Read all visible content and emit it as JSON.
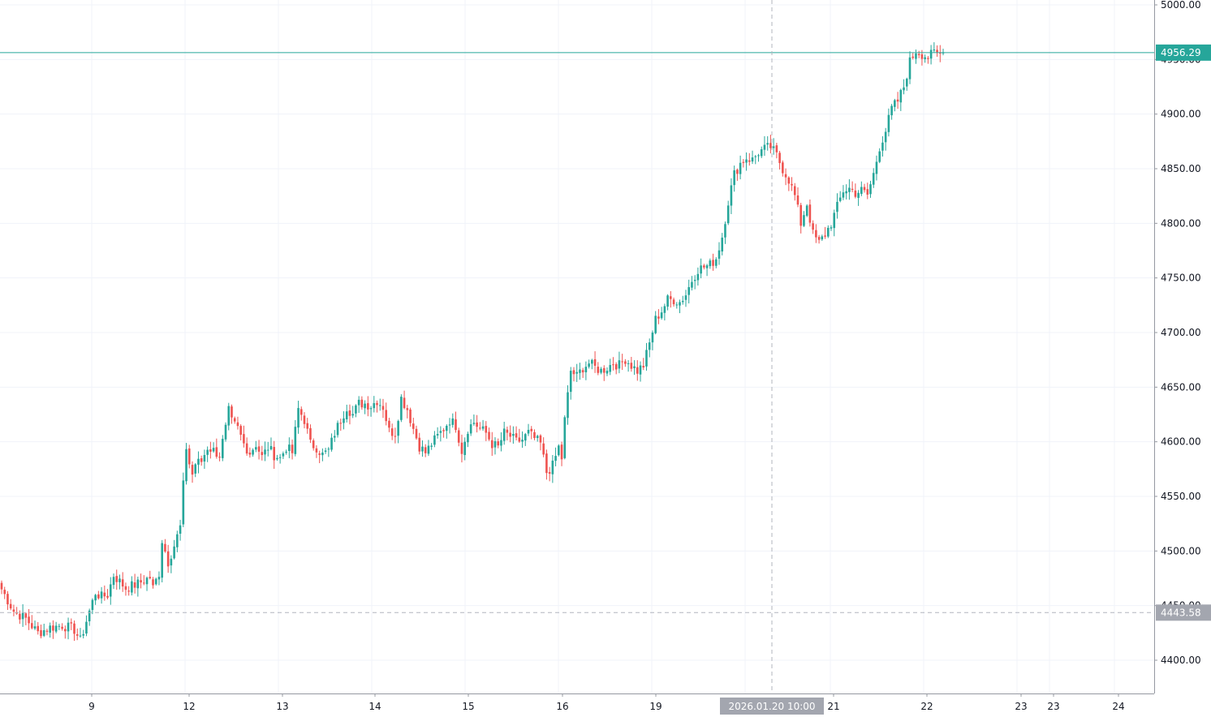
{
  "colors": {
    "up": "#26a69a",
    "down": "#ef5350",
    "grid": "#f0f3fa",
    "axis_line": "#9598a1",
    "crosshair": "#b2b5be",
    "last_price": "#26a69a",
    "crosshair_badge": "#a3a6af",
    "background": "#ffffff",
    "text": "#131722"
  },
  "chart_data": {
    "type": "candlestick",
    "y_range": [
      4375,
      5005
    ],
    "y_ticks": [
      4400,
      4450,
      4500,
      4550,
      4600,
      4650,
      4700,
      4750,
      4800,
      4850,
      4900,
      4950,
      5000
    ],
    "y_tick_labels": [
      "4400.00",
      "4450.00",
      "4500.00",
      "4550.00",
      "4600.00",
      "4650.00",
      "4700.00",
      "4750.00",
      "4800.00",
      "4850.00",
      "4900.00",
      "4950.00",
      "5000.00"
    ],
    "x_labels": [
      "9",
      "12",
      "13",
      "14",
      "15",
      "16",
      "19",
      "21",
      "22",
      "23",
      "23",
      "24"
    ],
    "last_price": 4956.29,
    "last_price_label": "4956.29",
    "crosshair_price": 4443.58,
    "crosshair_price_label": "4443.58",
    "crosshair_time_label": "2026.01.20 10:00",
    "grid": true,
    "close_path": [
      [
        0,
        4465
      ],
      [
        4,
        4445
      ],
      [
        8,
        4438
      ],
      [
        12,
        4425
      ],
      [
        16,
        4430
      ],
      [
        20,
        4432
      ],
      [
        24,
        4428
      ],
      [
        26,
        4418
      ],
      [
        29,
        4445
      ],
      [
        31,
        4462
      ],
      [
        33,
        4458
      ],
      [
        35,
        4460
      ],
      [
        37,
        4478
      ],
      [
        39,
        4472
      ],
      [
        41,
        4466
      ],
      [
        43,
        4468
      ],
      [
        45,
        4470
      ],
      [
        47,
        4473
      ],
      [
        49,
        4476
      ],
      [
        50,
        4466
      ],
      [
        52,
        4480
      ],
      [
        53,
        4510
      ],
      [
        55,
        4490
      ],
      [
        57,
        4505
      ],
      [
        59,
        4522
      ],
      [
        60,
        4560
      ],
      [
        61,
        4595
      ],
      [
        62,
        4580
      ],
      [
        63,
        4570
      ],
      [
        64,
        4580
      ],
      [
        66,
        4582
      ],
      [
        68,
        4595
      ],
      [
        70,
        4592
      ],
      [
        72,
        4588
      ],
      [
        73,
        4600
      ],
      [
        74,
        4612
      ],
      [
        75,
        4628
      ],
      [
        76,
        4618
      ],
      [
        78,
        4612
      ],
      [
        80,
        4598
      ],
      [
        82,
        4590
      ],
      [
        84,
        4598
      ],
      [
        86,
        4586
      ],
      [
        88,
        4595
      ],
      [
        90,
        4588
      ],
      [
        92,
        4585
      ],
      [
        94,
        4595
      ],
      [
        96,
        4590
      ],
      [
        98,
        4630
      ],
      [
        100,
        4620
      ],
      [
        102,
        4598
      ],
      [
        104,
        4595
      ],
      [
        106,
        4588
      ],
      [
        108,
        4592
      ],
      [
        110,
        4608
      ],
      [
        112,
        4620
      ],
      [
        114,
        4632
      ],
      [
        116,
        4625
      ],
      [
        118,
        4635
      ],
      [
        120,
        4635
      ],
      [
        122,
        4633
      ],
      [
        124,
        4638
      ],
      [
        126,
        4632
      ],
      [
        128,
        4610
      ],
      [
        130,
        4608
      ],
      [
        132,
        4640
      ],
      [
        134,
        4630
      ],
      [
        136,
        4612
      ],
      [
        138,
        4596
      ],
      [
        140,
        4590
      ],
      [
        142,
        4598
      ],
      [
        144,
        4605
      ],
      [
        146,
        4612
      ],
      [
        148,
        4620
      ],
      [
        150,
        4615
      ],
      [
        152,
        4592
      ],
      [
        154,
        4612
      ],
      [
        156,
        4618
      ],
      [
        158,
        4612
      ],
      [
        160,
        4608
      ],
      [
        162,
        4598
      ],
      [
        164,
        4595
      ],
      [
        166,
        4608
      ],
      [
        168,
        4605
      ],
      [
        170,
        4600
      ],
      [
        172,
        4602
      ],
      [
        174,
        4608
      ],
      [
        176,
        4603
      ],
      [
        178,
        4598
      ],
      [
        180,
        4572
      ],
      [
        182,
        4578
      ],
      [
        184,
        4595
      ],
      [
        185,
        4585
      ],
      [
        186,
        4620
      ],
      [
        188,
        4665
      ],
      [
        190,
        4660
      ],
      [
        192,
        4668
      ],
      [
        194,
        4672
      ],
      [
        196,
        4668
      ],
      [
        198,
        4665
      ],
      [
        200,
        4668
      ],
      [
        202,
        4672
      ],
      [
        204,
        4670
      ],
      [
        206,
        4676
      ],
      [
        208,
        4670
      ],
      [
        210,
        4665
      ],
      [
        212,
        4670
      ],
      [
        214,
        4690
      ],
      [
        216,
        4712
      ],
      [
        218,
        4720
      ],
      [
        220,
        4730
      ],
      [
        222,
        4730
      ],
      [
        224,
        4728
      ],
      [
        226,
        4735
      ],
      [
        228,
        4748
      ],
      [
        230,
        4758
      ],
      [
        232,
        4760
      ],
      [
        234,
        4762
      ],
      [
        236,
        4768
      ],
      [
        238,
        4788
      ],
      [
        240,
        4820
      ],
      [
        242,
        4845
      ],
      [
        244,
        4855
      ],
      [
        246,
        4860
      ],
      [
        248,
        4858
      ],
      [
        250,
        4865
      ],
      [
        252,
        4868
      ],
      [
        254,
        4870
      ],
      [
        256,
        4862
      ],
      [
        258,
        4850
      ],
      [
        260,
        4840
      ],
      [
        262,
        4825
      ],
      [
        264,
        4800
      ],
      [
        266,
        4818
      ],
      [
        268,
        4790
      ],
      [
        270,
        4782
      ],
      [
        272,
        4790
      ],
      [
        274,
        4800
      ],
      [
        276,
        4815
      ],
      [
        278,
        4830
      ],
      [
        280,
        4832
      ],
      [
        282,
        4828
      ],
      [
        284,
        4830
      ],
      [
        286,
        4826
      ],
      [
        288,
        4845
      ],
      [
        290,
        4870
      ],
      [
        292,
        4885
      ],
      [
        294,
        4905
      ],
      [
        296,
        4912
      ],
      [
        298,
        4925
      ],
      [
        300,
        4948
      ],
      [
        302,
        4958
      ],
      [
        304,
        4955
      ],
      [
        306,
        4952
      ],
      [
        308,
        4956
      ],
      [
        310,
        4955
      ],
      [
        311,
        4956
      ]
    ]
  }
}
